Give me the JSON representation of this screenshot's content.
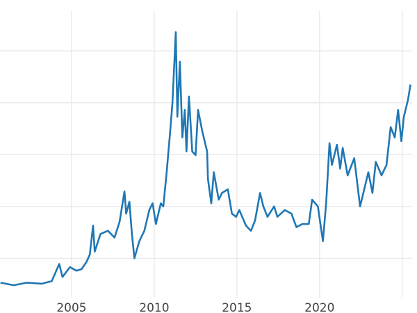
{
  "chart_data": {
    "type": "line",
    "title": "",
    "xlabel": "",
    "ylabel": "",
    "xlim": [
      2000.67,
      2025.6
    ],
    "ylim": [
      2.4,
      57.8
    ],
    "x_ticks": [
      2005,
      2010,
      2015,
      2020,
      2025
    ],
    "x_tick_labels": [
      "2005",
      "2010",
      "2015",
      "2020",
      ""
    ],
    "y_gridlines": [
      10,
      20,
      30,
      40,
      50
    ],
    "grid": true,
    "color": "#1f77b4",
    "series": [
      {
        "x": [
          2000.7,
          2001.5,
          2002.3,
          2003.2,
          2003.8,
          2004.25,
          2004.45,
          2004.9,
          2005.3,
          2005.6,
          2005.9,
          2006.1,
          2006.3,
          2006.4,
          2006.75,
          2007.2,
          2007.6,
          2007.9,
          2008.2,
          2008.3,
          2008.5,
          2008.65,
          2008.8,
          2009.1,
          2009.4,
          2009.7,
          2009.9,
          2010.1,
          2010.4,
          2010.55,
          2010.75,
          2010.95,
          2011.1,
          2011.3,
          2011.4,
          2011.55,
          2011.7,
          2011.85,
          2011.95,
          2012.1,
          2012.3,
          2012.5,
          2012.65,
          2012.9,
          2013.2,
          2013.25,
          2013.45,
          2013.6,
          2013.9,
          2014.1,
          2014.45,
          2014.7,
          2014.95,
          2015.15,
          2015.55,
          2015.85,
          2016.1,
          2016.4,
          2016.6,
          2016.85,
          2017.25,
          2017.45,
          2017.9,
          2018.3,
          2018.6,
          2018.95,
          2019.35,
          2019.55,
          2019.9,
          2020.2,
          2020.4,
          2020.6,
          2020.75,
          2021.05,
          2021.25,
          2021.4,
          2021.7,
          2022.1,
          2022.45,
          2022.65,
          2022.95,
          2023.2,
          2023.4,
          2023.75,
          2024.05,
          2024.3,
          2024.55,
          2024.75,
          2024.95,
          2025.1,
          2025.35,
          2025.5
        ],
        "values": [
          5.3,
          4.8,
          5.3,
          5.1,
          5.6,
          8.9,
          6.4,
          8.3,
          7.6,
          7.9,
          9.3,
          10.7,
          16.3,
          11.3,
          14.7,
          15.3,
          14.0,
          17.0,
          22.9,
          18.6,
          20.9,
          14.7,
          10.0,
          13.3,
          15.3,
          19.3,
          20.6,
          16.6,
          20.6,
          20.0,
          26.6,
          33.9,
          39.9,
          53.6,
          37.3,
          47.9,
          33.3,
          38.6,
          30.6,
          41.2,
          30.6,
          29.9,
          38.6,
          34.6,
          30.6,
          25.3,
          20.6,
          26.6,
          21.3,
          22.6,
          23.3,
          18.6,
          18.0,
          19.3,
          16.3,
          15.3,
          17.3,
          22.6,
          20.0,
          18.0,
          20.0,
          18.0,
          19.3,
          18.6,
          16.0,
          16.6,
          16.6,
          21.3,
          20.0,
          13.3,
          20.6,
          32.2,
          28.0,
          31.9,
          27.3,
          31.3,
          26.0,
          29.3,
          20.0,
          22.6,
          26.6,
          22.6,
          28.6,
          26.0,
          28.0,
          35.3,
          33.3,
          38.6,
          32.6,
          37.3,
          40.6,
          43.5
        ]
      }
    ]
  }
}
